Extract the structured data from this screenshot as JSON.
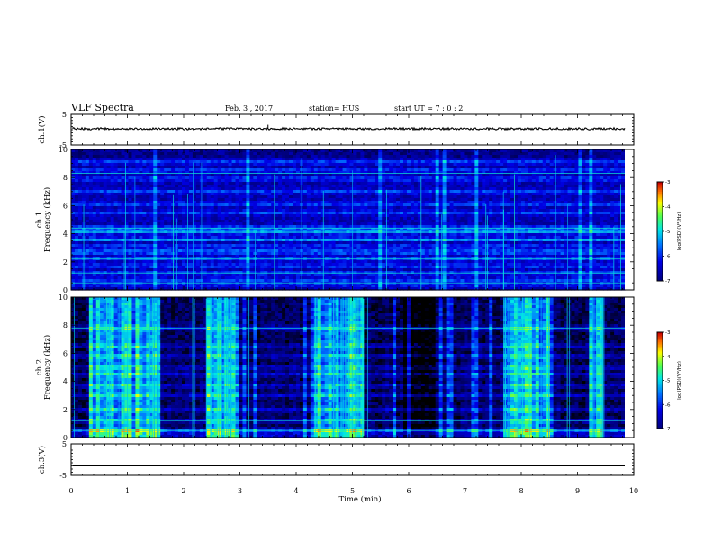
{
  "header": {
    "title": "VLF Spectra",
    "date": "Feb. 3  , 2017",
    "station": "station= HUS",
    "start": "start  UT  =   7 : 0  : 2"
  },
  "chart_data": [
    {
      "type": "line",
      "id": "ch1-waveform",
      "ylabel": "ch.1(V)",
      "ylim": [
        -5,
        5
      ],
      "yticks": [
        "5",
        "-5"
      ],
      "xlim": [
        0,
        10
      ],
      "level_v": 0.3,
      "spikes": [
        {
          "x": 3.5,
          "v": 1.6
        }
      ]
    },
    {
      "type": "heatmap",
      "id": "ch1-spectrogram",
      "ylabel_top": "ch.1",
      "ylabel": "Frequency (kHz)",
      "ylim": [
        0,
        10
      ],
      "yticks": [
        "0",
        "2",
        "4",
        "6",
        "8",
        "10"
      ],
      "xlim": [
        0,
        9.85
      ],
      "colorbar": {
        "label": "log(PSD)(V²/Hz)",
        "ticks": [
          "-3",
          "-4",
          "-5",
          "-6",
          "-7"
        ],
        "range": [
          -7,
          -3
        ]
      },
      "bands_khz": [
        0.4,
        0.7,
        1.2,
        1.7,
        2.2,
        2.7,
        3.1,
        3.6,
        4.1,
        4.4,
        5.5,
        6.1,
        7.0,
        7.9,
        8.5,
        9.1
      ],
      "strong_bands_khz": [
        3.6,
        4.1,
        4.4,
        2.7
      ]
    },
    {
      "type": "heatmap",
      "id": "ch2-spectrogram",
      "ylabel_top": "ch.2",
      "ylabel": "Frequency (kHz)",
      "ylim": [
        0,
        10
      ],
      "yticks": [
        "0",
        "2",
        "4",
        "6",
        "8",
        "10"
      ],
      "xlim": [
        0,
        9.85
      ],
      "colorbar": {
        "label": "log(PSD)(V²/Hz)",
        "ticks": [
          "-3",
          "-4",
          "-5",
          "-6",
          "-7"
        ],
        "range": [
          -7,
          -3
        ]
      },
      "bands_khz": [
        0.5,
        1.2,
        2.0,
        3.0,
        3.7,
        4.5,
        5.0,
        5.8,
        6.5,
        7.8
      ],
      "active_intervals_min": [
        [
          0.3,
          1.6
        ],
        [
          2.4,
          3.0
        ],
        [
          4.3,
          5.2
        ],
        [
          7.7,
          8.5
        ],
        [
          9.2,
          9.5
        ]
      ]
    },
    {
      "type": "line",
      "id": "ch3-waveform",
      "ylabel": "ch.3(V)",
      "ylim": [
        -5,
        5
      ],
      "yticks": [
        "5",
        "-5"
      ],
      "xlim": [
        0,
        10
      ],
      "level_v": -2.0
    }
  ],
  "xaxis": {
    "label": "Time (min)",
    "ticks": [
      "0",
      "1",
      "2",
      "3",
      "4",
      "5",
      "6",
      "7",
      "8",
      "9",
      "10"
    ]
  }
}
